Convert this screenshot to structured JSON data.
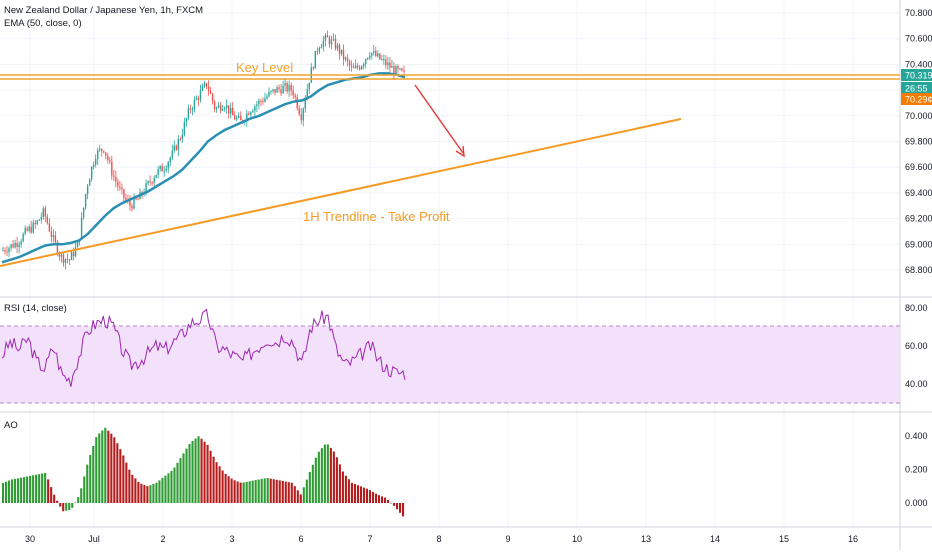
{
  "header": {
    "symbol": "New Zealand Dollar / Japanese Yen, 1h, FXCM",
    "ema": "EMA (50, close, 0)"
  },
  "colors": {
    "up": "#26a69a",
    "down": "#ef5350",
    "ema": "#2a8fb3",
    "key_level": "#f2a22c",
    "trendline": "#f59a23",
    "arrow": "#e53935",
    "rsi_line": "#9c27b0",
    "rsi_band": "#f3e0fb",
    "ao_up": "#2e9b33",
    "ao_down": "#b71c1c"
  },
  "annotations": {
    "key_level_label": "Key Level",
    "trendline_label": "1H Trendline - Take Profit"
  },
  "price_scale": {
    "ticks": [
      "70.800",
      "70.600",
      "70.400",
      "70.200",
      "70.000",
      "69.800",
      "69.600",
      "69.400",
      "69.200",
      "69.000",
      "68.800"
    ],
    "badges": [
      {
        "text": "70.319",
        "color": "#26a69a"
      },
      {
        "text": "26:55",
        "color": "#26a69a"
      },
      {
        "text": "70.29¢",
        "color": "#f57c00"
      }
    ]
  },
  "rsi": {
    "label": "RSI (14, close)",
    "ticks": [
      "80.00",
      "60.00",
      "40.00"
    ]
  },
  "ao": {
    "label": "AO",
    "ticks": [
      "0.400",
      "0.200",
      "0.000"
    ]
  },
  "time_axis": {
    "labels": [
      "30",
      "Jul",
      "2",
      "3",
      "6",
      "7",
      "8",
      "9",
      "10",
      "13",
      "14",
      "15",
      "16"
    ]
  },
  "chart_data": {
    "type": "candlestick",
    "title": "New Zealand Dollar / Japanese Yen, 1h, FXCM",
    "x_labels": [
      "30",
      "Jul",
      "2",
      "3",
      "6",
      "7",
      "8",
      "9",
      "10",
      "13",
      "14",
      "15",
      "16"
    ],
    "ylim": [
      68.7,
      70.85
    ],
    "grid": true,
    "price_path": [
      68.95,
      68.98,
      69.02,
      69.1,
      69.15,
      69.25,
      69.05,
      68.9,
      68.88,
      69.0,
      69.45,
      69.7,
      69.75,
      69.55,
      69.4,
      69.3,
      69.35,
      69.45,
      69.55,
      69.6,
      69.7,
      69.85,
      70.05,
      70.15,
      70.25,
      70.05,
      70.1,
      70.0,
      69.95,
      70.05,
      70.1,
      70.15,
      70.2,
      70.22,
      70.2,
      70.0,
      70.3,
      70.55,
      70.6,
      70.55,
      70.45,
      70.35,
      70.4,
      70.5,
      70.45,
      70.4,
      70.35,
      70.32
    ],
    "ema_path": [
      68.86,
      68.88,
      68.9,
      68.93,
      68.96,
      68.99,
      69.0,
      69.0,
      69.01,
      69.03,
      69.08,
      69.15,
      69.22,
      69.28,
      69.32,
      69.35,
      69.38,
      69.41,
      69.45,
      69.49,
      69.53,
      69.58,
      69.65,
      69.72,
      69.8,
      69.85,
      69.89,
      69.92,
      69.95,
      69.98,
      70.0,
      70.03,
      70.06,
      70.09,
      70.11,
      70.12,
      70.15,
      70.2,
      70.24,
      70.26,
      70.28,
      70.29,
      70.3,
      70.32,
      70.33,
      70.33,
      70.32,
      70.3
    ],
    "key_level": 70.3,
    "trendline": {
      "start": {
        "x": "29 Jun",
        "y": 68.8
      },
      "end": {
        "x": "13 Jul",
        "y": 69.98
      }
    },
    "rsi": {
      "name": "RSI (14, close)",
      "band": [
        30,
        70
      ],
      "values": [
        55,
        62,
        58,
        64,
        52,
        48,
        60,
        45,
        42,
        55,
        68,
        72,
        74,
        70,
        58,
        50,
        52,
        56,
        60,
        58,
        62,
        66,
        72,
        74,
        76,
        60,
        58,
        55,
        52,
        56,
        60,
        64,
        62,
        66,
        62,
        50,
        70,
        74,
        76,
        58,
        50,
        52,
        56,
        60,
        52,
        48,
        46,
        46
      ]
    },
    "ao": {
      "name": "AO",
      "values": [
        0.12,
        0.14,
        0.15,
        0.16,
        0.17,
        0.18,
        0.05,
        -0.05,
        -0.04,
        0.05,
        0.25,
        0.4,
        0.45,
        0.4,
        0.3,
        0.18,
        0.12,
        0.1,
        0.12,
        0.16,
        0.2,
        0.28,
        0.36,
        0.4,
        0.35,
        0.25,
        0.18,
        0.14,
        0.12,
        0.13,
        0.14,
        0.15,
        0.14,
        0.13,
        0.12,
        0.05,
        0.18,
        0.3,
        0.36,
        0.3,
        0.18,
        0.12,
        0.1,
        0.08,
        0.05,
        0.03,
        -0.02,
        -0.08
      ]
    }
  }
}
